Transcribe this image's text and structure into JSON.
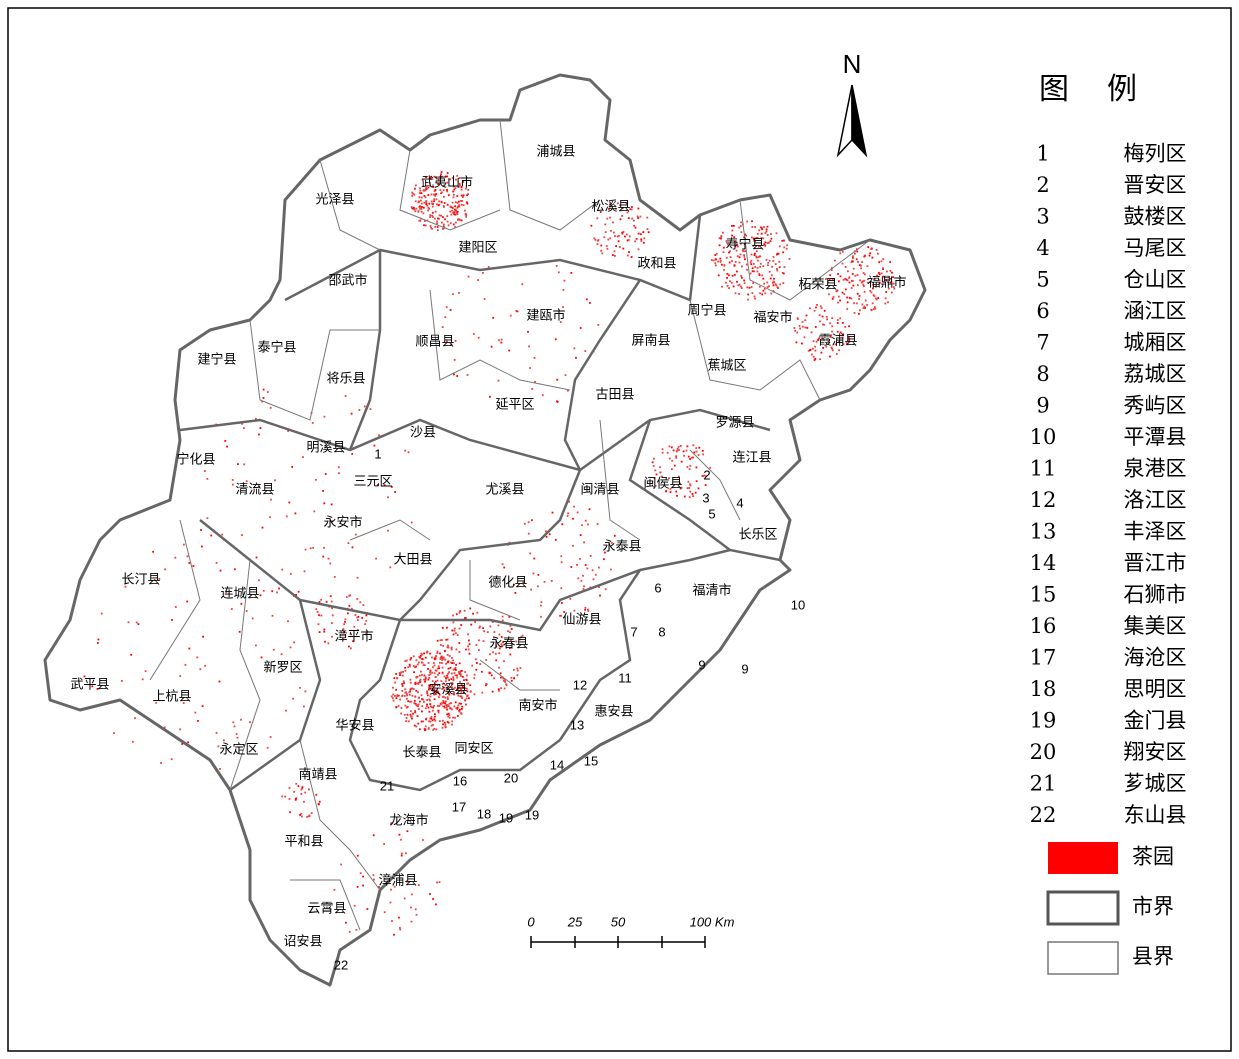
{
  "map": {
    "north_arrow": "N",
    "labels": [
      "光泽县",
      "武夷山市",
      "浦城县",
      "松溪县",
      "建阳区",
      "政和县",
      "寿宁县",
      "柘荣县",
      "福鼎市",
      "周宁县",
      "福安市",
      "霞浦县",
      "邵武市",
      "建瓯市",
      "泰宁县",
      "建宁县",
      "顺昌县",
      "将乐县",
      "屏南县",
      "蕉城区",
      "古田县",
      "延平区",
      "罗源县",
      "沙县",
      "明溪县",
      "连江县",
      "宁化县",
      "三元区",
      "清流县",
      "尤溪县",
      "闽清县",
      "闽侯县",
      "永安市",
      "长乐区",
      "永泰县",
      "大田县",
      "长汀县",
      "德化县",
      "连城县",
      "福清市",
      "仙游县",
      "漳平市",
      "永春县",
      "新罗区",
      "武平县",
      "安溪县",
      "上杭县",
      "南安市",
      "惠安县",
      "华安县",
      "永定区",
      "长泰县",
      "同安区",
      "南靖县",
      "龙海市",
      "平和县",
      "漳浦县",
      "云霄县",
      "诏安县"
    ],
    "number_labels": [
      "1",
      "2",
      "3",
      "4",
      "5",
      "6",
      "7",
      "8",
      "9",
      "9",
      "10",
      "11",
      "12",
      "13",
      "14",
      "15",
      "16",
      "17",
      "18",
      "19",
      "19",
      "20",
      "21",
      "22"
    ],
    "scale_bar": [
      "0",
      "25",
      "50",
      "100 Km"
    ]
  },
  "legend": {
    "title": "图例",
    "districts": [
      {
        "number": "1",
        "name": "梅列区"
      },
      {
        "number": "2",
        "name": "晋安区"
      },
      {
        "number": "3",
        "name": "鼓楼区"
      },
      {
        "number": "4",
        "name": "马尾区"
      },
      {
        "number": "5",
        "name": "仓山区"
      },
      {
        "number": "6",
        "name": "涵江区"
      },
      {
        "number": "7",
        "name": "城厢区"
      },
      {
        "number": "8",
        "name": "荔城区"
      },
      {
        "number": "9",
        "name": "秀屿区"
      },
      {
        "number": "10",
        "name": "平潭县"
      },
      {
        "number": "11",
        "name": "泉港区"
      },
      {
        "number": "12",
        "name": "洛江区"
      },
      {
        "number": "13",
        "name": "丰泽区"
      },
      {
        "number": "14",
        "name": "晋江市"
      },
      {
        "number": "15",
        "name": "石狮市"
      },
      {
        "number": "16",
        "name": "集美区"
      },
      {
        "number": "17",
        "name": "海沧区"
      },
      {
        "number": "18",
        "name": "思明区"
      },
      {
        "number": "19",
        "name": "金门县"
      },
      {
        "number": "20",
        "name": "翔安区"
      },
      {
        "number": "21",
        "name": "芗城区"
      },
      {
        "number": "22",
        "name": "东山县"
      }
    ],
    "symbols": [
      "茶园",
      "市界",
      "县界"
    ]
  }
}
